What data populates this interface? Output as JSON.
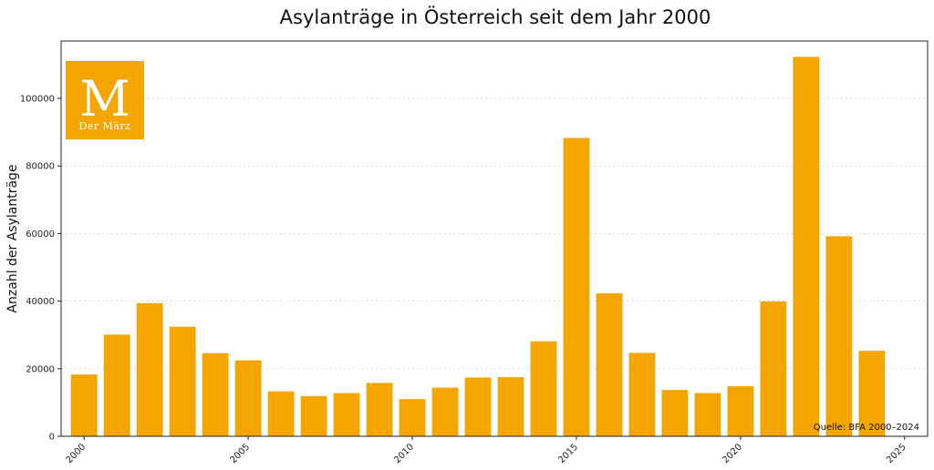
{
  "chart_data": {
    "type": "bar",
    "title": "Asylanträge in Österreich seit dem Jahr 2000",
    "xlabel": "",
    "ylabel": "Anzahl der Asylanträge",
    "x": [
      2000,
      2001,
      2002,
      2003,
      2004,
      2005,
      2006,
      2007,
      2008,
      2009,
      2010,
      2011,
      2012,
      2013,
      2014,
      2015,
      2016,
      2017,
      2018,
      2019,
      2020,
      2021,
      2022,
      2023,
      2024
    ],
    "values": [
      18300,
      30100,
      39400,
      32400,
      24600,
      22500,
      13300,
      11900,
      12800,
      15800,
      11000,
      14400,
      17400,
      17500,
      28100,
      88300,
      42300,
      24700,
      13700,
      12800,
      14800,
      39900,
      112300,
      59200,
      25300
    ],
    "xlim": [
      1999.3,
      2025.7
    ],
    "ylim": [
      0,
      117000
    ],
    "xticks": [
      2000,
      2005,
      2010,
      2015,
      2020,
      2025
    ],
    "yticks": [
      0,
      20000,
      40000,
      60000,
      80000,
      100000
    ],
    "grid": "horizontal dotted",
    "color": "#f5a500",
    "annotation": "Quelle: BFA 2000–2024"
  },
  "logo": {
    "letter": "M",
    "text": "Der März",
    "color": "#f5a500"
  }
}
